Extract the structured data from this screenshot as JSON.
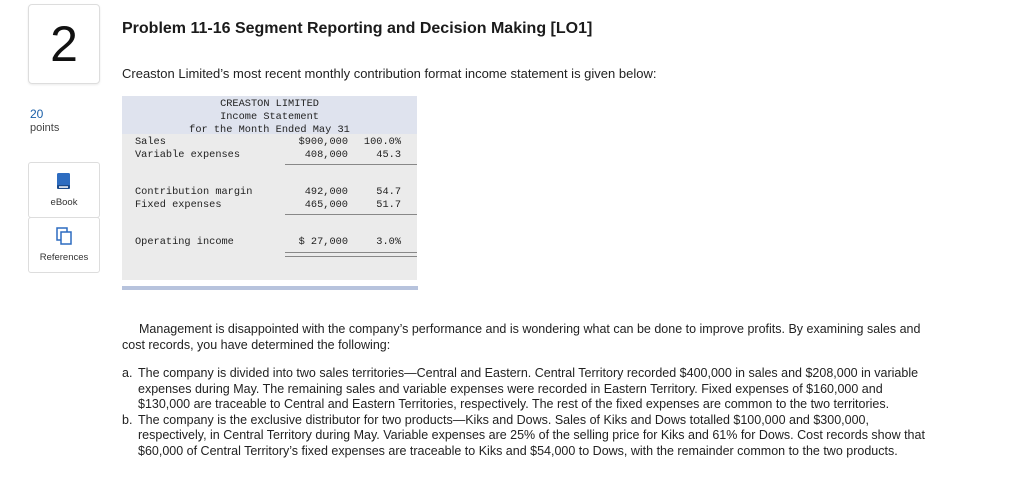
{
  "question": {
    "number": "2",
    "points_value": "20",
    "points_label": "points"
  },
  "tools": {
    "ebook_label": "eBook",
    "references_label": "References"
  },
  "problem": {
    "title": "Problem 11-16 Segment Reporting and Decision Making [LO1]",
    "intro": "Creaston Limited’s most recent monthly contribution format income statement is given below:"
  },
  "statement": {
    "company": "CREASTON LIMITED",
    "name": "Income Statement",
    "period": "for the Month Ended May 31",
    "rows": [
      {
        "label": "Sales",
        "amount": "$900,000",
        "percent": "100.0%"
      },
      {
        "label": "Variable expenses",
        "amount": "408,000",
        "percent": "45.3"
      },
      {
        "label": "Contribution margin",
        "amount": "492,000",
        "percent": "54.7"
      },
      {
        "label": "Fixed expenses",
        "amount": "465,000",
        "percent": "51.7"
      },
      {
        "label": "Operating income",
        "amount": "$ 27,000",
        "percent": "3.0%"
      }
    ]
  },
  "analysis": {
    "intro": "Management is disappointed with the company’s performance and is wondering what can be done to improve profits. By examining sales and cost records, you have determined the following:",
    "items": [
      {
        "marker": "a.",
        "text": "The company is divided into two sales territories—Central and Eastern. Central Territory recorded $400,000 in sales and $208,000 in variable expenses during May. The remaining sales and variable expenses were recorded in Eastern Territory. Fixed expenses of $160,000 and $130,000 are traceable to Central and Eastern Territories, respectively. The rest of the fixed expenses are common to the two territories."
      },
      {
        "marker": "b.",
        "text": "The company is the exclusive distributor for two products—Kiks and Dows. Sales of Kiks and Dows totalled $100,000 and $300,000, respectively, in Central Territory during May. Variable expenses are 25% of the selling price for Kiks and 61% for Dows. Cost records show that $60,000 of Central Territory’s fixed expenses are traceable to Kiks and $54,000 to Dows, with the remainder common to the two products."
      }
    ]
  },
  "colors": {
    "accent": "#1a5fa8",
    "statement_bg": "#ebebeb",
    "statement_header_bg": "#dfe3ee"
  },
  "icons": {
    "ebook": "book-icon",
    "references": "documents-icon"
  }
}
